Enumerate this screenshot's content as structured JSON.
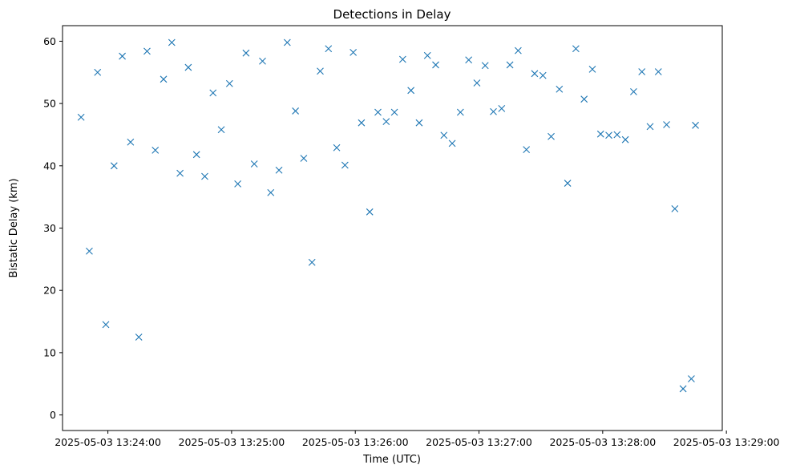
{
  "chart_data": {
    "type": "scatter",
    "title": "Detections in Delay",
    "xlabel": "Time (UTC)",
    "ylabel": "Bistatic Delay (km)",
    "marker": "x",
    "color": "#1f77b4",
    "grid": false,
    "legend": "none",
    "x_ticks": [
      "2025-05-03 13:24:00",
      "2025-05-03 13:25:00",
      "2025-05-03 13:26:00",
      "2025-05-03 13:27:00",
      "2025-05-03 13:28:00",
      "2025-05-03 13:29:00"
    ],
    "y_ticks": [
      0,
      10,
      20,
      30,
      40,
      50,
      60
    ],
    "xlim": [
      "2025-05-03 13:23:38",
      "2025-05-03 13:28:58"
    ],
    "ylim": [
      -2.5,
      62.5
    ],
    "data_range": [
      "2025-05-03 13:23:47",
      "2025-05-03 13:28:45"
    ],
    "series": [
      {
        "name": "",
        "x": [
          "2025-05-03 13:23:47",
          "2025-05-03 13:23:51",
          "2025-05-03 13:23:55",
          "2025-05-03 13:23:59",
          "2025-05-03 13:24:03",
          "2025-05-03 13:24:07",
          "2025-05-03 13:24:11",
          "2025-05-03 13:24:15",
          "2025-05-03 13:24:19",
          "2025-05-03 13:24:23",
          "2025-05-03 13:24:27",
          "2025-05-03 13:24:31",
          "2025-05-03 13:24:35",
          "2025-05-03 13:24:39",
          "2025-05-03 13:24:43",
          "2025-05-03 13:24:47",
          "2025-05-03 13:24:51",
          "2025-05-03 13:24:55",
          "2025-05-03 13:24:59",
          "2025-05-03 13:25:03",
          "2025-05-03 13:25:07",
          "2025-05-03 13:25:11",
          "2025-05-03 13:25:15",
          "2025-05-03 13:25:19",
          "2025-05-03 13:25:23",
          "2025-05-03 13:25:27",
          "2025-05-03 13:25:31",
          "2025-05-03 13:25:35",
          "2025-05-03 13:25:39",
          "2025-05-03 13:25:43",
          "2025-05-03 13:25:47",
          "2025-05-03 13:25:51",
          "2025-05-03 13:25:55",
          "2025-05-03 13:25:59",
          "2025-05-03 13:26:03",
          "2025-05-03 13:26:07",
          "2025-05-03 13:26:11",
          "2025-05-03 13:26:15",
          "2025-05-03 13:26:19",
          "2025-05-03 13:26:23",
          "2025-05-03 13:26:27",
          "2025-05-03 13:26:31",
          "2025-05-03 13:26:35",
          "2025-05-03 13:26:39",
          "2025-05-03 13:26:43",
          "2025-05-03 13:26:47",
          "2025-05-03 13:26:51",
          "2025-05-03 13:26:55",
          "2025-05-03 13:26:59",
          "2025-05-03 13:27:03",
          "2025-05-03 13:27:07",
          "2025-05-03 13:27:11",
          "2025-05-03 13:27:15",
          "2025-05-03 13:27:19",
          "2025-05-03 13:27:23",
          "2025-05-03 13:27:27",
          "2025-05-03 13:27:31",
          "2025-05-03 13:27:35",
          "2025-05-03 13:27:39",
          "2025-05-03 13:27:43",
          "2025-05-03 13:27:47",
          "2025-05-03 13:27:51",
          "2025-05-03 13:27:55",
          "2025-05-03 13:27:59",
          "2025-05-03 13:28:03",
          "2025-05-03 13:28:07",
          "2025-05-03 13:28:11",
          "2025-05-03 13:28:15",
          "2025-05-03 13:28:19",
          "2025-05-03 13:28:23",
          "2025-05-03 13:28:27",
          "2025-05-03 13:28:31",
          "2025-05-03 13:28:35",
          "2025-05-03 13:28:39",
          "2025-05-03 13:28:43",
          "2025-05-03 13:28:45"
        ],
        "y": [
          47.8,
          26.3,
          55,
          14.5,
          40,
          57.6,
          43.8,
          12.5,
          58.4,
          42.5,
          53.9,
          59.8,
          38.8,
          55.8,
          41.8,
          38.3,
          51.7,
          45.8,
          53.2,
          37.1,
          58.1,
          40.3,
          56.8,
          35.7,
          39.3,
          59.8,
          48.8,
          41.2,
          24.5,
          55.2,
          58.8,
          42.9,
          40.1,
          58.2,
          46.9,
          32.6,
          48.6,
          47.1,
          48.6,
          57.1,
          52.1,
          46.9,
          57.7,
          56.2,
          44.9,
          43.6,
          48.6,
          57,
          53.3,
          56.1,
          48.7,
          49.2,
          56.2,
          58.5,
          42.6,
          54.8,
          54.5,
          44.7,
          52.3,
          37.2,
          58.8,
          50.7,
          55.5,
          45.1,
          44.9,
          45,
          44.2,
          51.9,
          55.1,
          46.3,
          55.1,
          46.6,
          33.1,
          4.2,
          5.8,
          46.5
        ]
      }
    ]
  }
}
